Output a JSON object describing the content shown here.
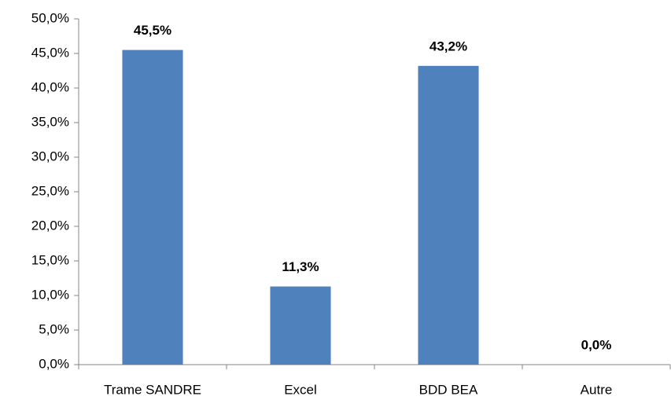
{
  "chart_data": {
    "type": "bar",
    "categories": [
      "Trame SANDRE",
      "Excel",
      "BDD BEA",
      "Autre"
    ],
    "values": [
      45.5,
      11.3,
      43.2,
      0.0
    ],
    "value_labels": [
      "45,5%",
      "11,3%",
      "43,2%",
      "0,0%"
    ],
    "color": "#4f81bd",
    "ylim": [
      0,
      50
    ],
    "yticks": [
      {
        "value": 0,
        "label": "0,0%"
      },
      {
        "value": 5,
        "label": "5,0%"
      },
      {
        "value": 10,
        "label": "10,0%"
      },
      {
        "value": 15,
        "label": "15,0%"
      },
      {
        "value": 20,
        "label": "20,0%"
      },
      {
        "value": 25,
        "label": "25,0%"
      },
      {
        "value": 30,
        "label": "30,0%"
      },
      {
        "value": 35,
        "label": "35,0%"
      },
      {
        "value": 40,
        "label": "40,0%"
      },
      {
        "value": 45,
        "label": "45,0%"
      },
      {
        "value": 50,
        "label": "50,0%"
      }
    ],
    "grid": false
  }
}
